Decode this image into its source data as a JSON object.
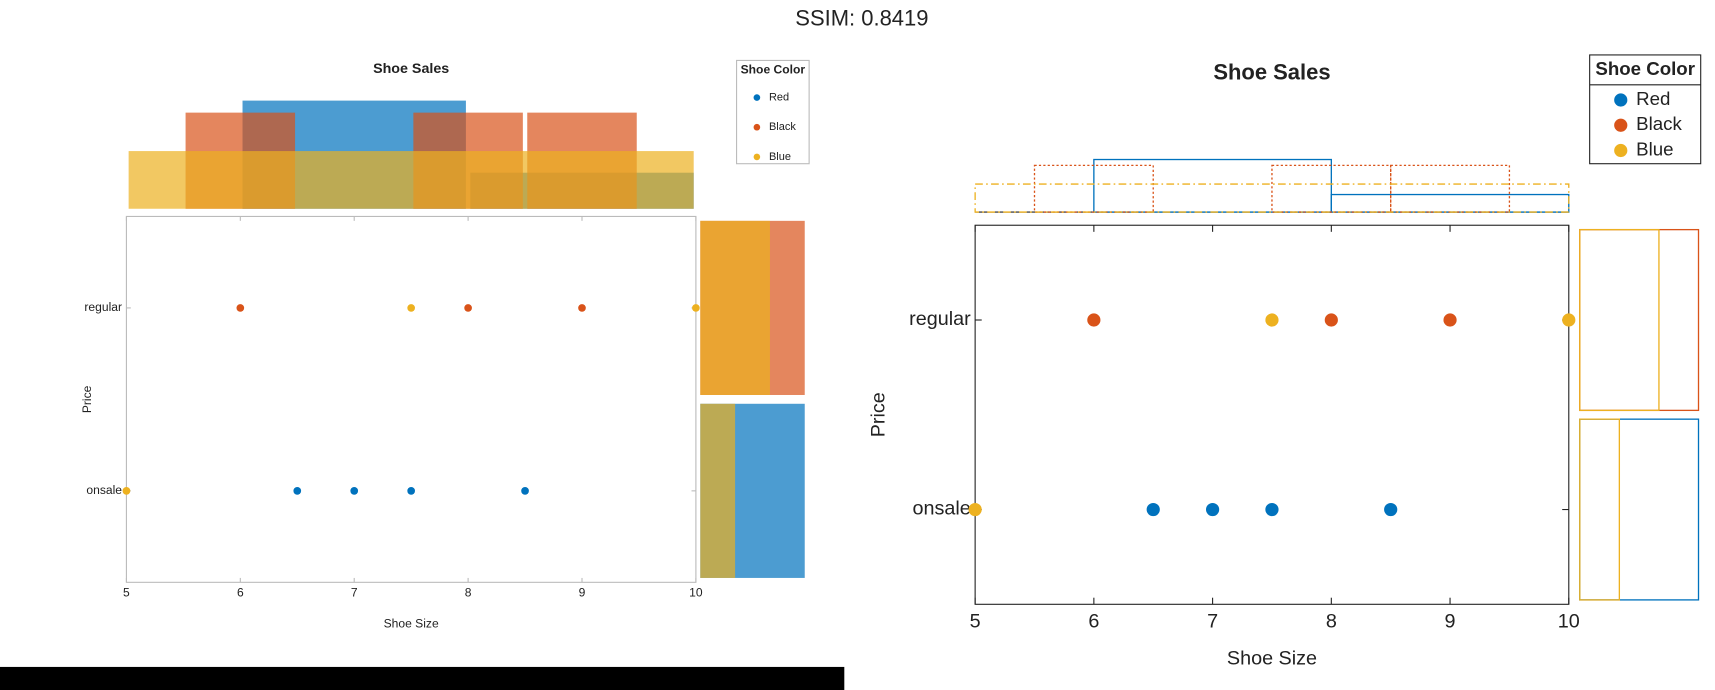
{
  "header": "SSIM: 0.8419",
  "chart_data": [
    {
      "type": "scatter",
      "style": "filled",
      "title": "Shoe Sales",
      "x_label": "Shoe Size",
      "y_label": "Price",
      "legend_title": "Shoe Color",
      "categories": [
        "onsale",
        "regular"
      ],
      "xlim": [
        5,
        10
      ],
      "xticks": [
        5,
        6,
        7,
        8,
        9,
        10
      ],
      "x_hist_ylim": [
        0,
        0.4
      ],
      "y_hist_xlim": [
        0,
        1
      ],
      "series": [
        {
          "name": "Red",
          "color": "#0072BD",
          "x": [
            6.5,
            7,
            7.5,
            8.5
          ],
          "values": [
            "onsale",
            "onsale",
            "onsale",
            "onsale"
          ],
          "hist_bins": [
            6,
            8,
            10
          ],
          "hist_values": [
            0.375,
            0.125
          ],
          "y_hist_values": [
            1,
            0
          ]
        },
        {
          "name": "Black",
          "color": "#D95319",
          "x": [
            6,
            8,
            9
          ],
          "values": [
            "regular",
            "regular",
            "regular"
          ],
          "hist_bins": [
            5.5,
            6.5,
            7.5,
            8.5,
            9.5
          ],
          "hist_values": [
            0.3333,
            0,
            0.3333,
            0.3333
          ],
          "y_hist_values": [
            0,
            1
          ]
        },
        {
          "name": "Blue",
          "color": "#EDB120",
          "x": [
            7.5,
            10,
            5
          ],
          "values": [
            "regular",
            "regular",
            "onsale"
          ],
          "hist_bins": [
            5,
            10
          ],
          "hist_values": [
            0.2
          ],
          "y_hist_values": [
            0.3333,
            0.6667
          ]
        }
      ]
    },
    {
      "type": "scatter",
      "style": "outline",
      "title": "Shoe Sales",
      "x_label": "Shoe Size",
      "y_label": "Price",
      "legend_title": "Shoe Color",
      "categories": [
        "onsale",
        "regular"
      ],
      "xlim": [
        5,
        10
      ],
      "xticks": [
        5,
        6,
        7,
        8,
        9,
        10
      ],
      "x_hist_ylim": [
        0,
        0.4
      ],
      "y_hist_xlim": [
        0,
        1
      ],
      "series": [
        {
          "name": "Red",
          "color": "#0072BD",
          "dash": "solid",
          "x": [
            6.5,
            7,
            7.5,
            8.5
          ],
          "values": [
            "onsale",
            "onsale",
            "onsale",
            "onsale"
          ],
          "hist_bins": [
            6,
            8,
            10
          ],
          "hist_values": [
            0.375,
            0.125
          ],
          "y_hist_values": [
            1,
            0
          ]
        },
        {
          "name": "Black",
          "color": "#D95319",
          "dash": "dotted",
          "x": [
            6,
            8,
            9
          ],
          "values": [
            "regular",
            "regular",
            "regular"
          ],
          "hist_bins": [
            5.5,
            6.5,
            7.5,
            8.5,
            9.5
          ],
          "hist_values": [
            0.3333,
            0,
            0.3333,
            0.3333
          ],
          "y_hist_values": [
            0,
            1
          ]
        },
        {
          "name": "Blue",
          "color": "#EDB120",
          "dash": "dashdot",
          "x": [
            7.5,
            10,
            5
          ],
          "values": [
            "regular",
            "regular",
            "onsale"
          ],
          "hist_bins": [
            5,
            10
          ],
          "hist_values": [
            0.2
          ],
          "y_hist_values": [
            0.3333,
            0.6667
          ]
        }
      ]
    }
  ]
}
